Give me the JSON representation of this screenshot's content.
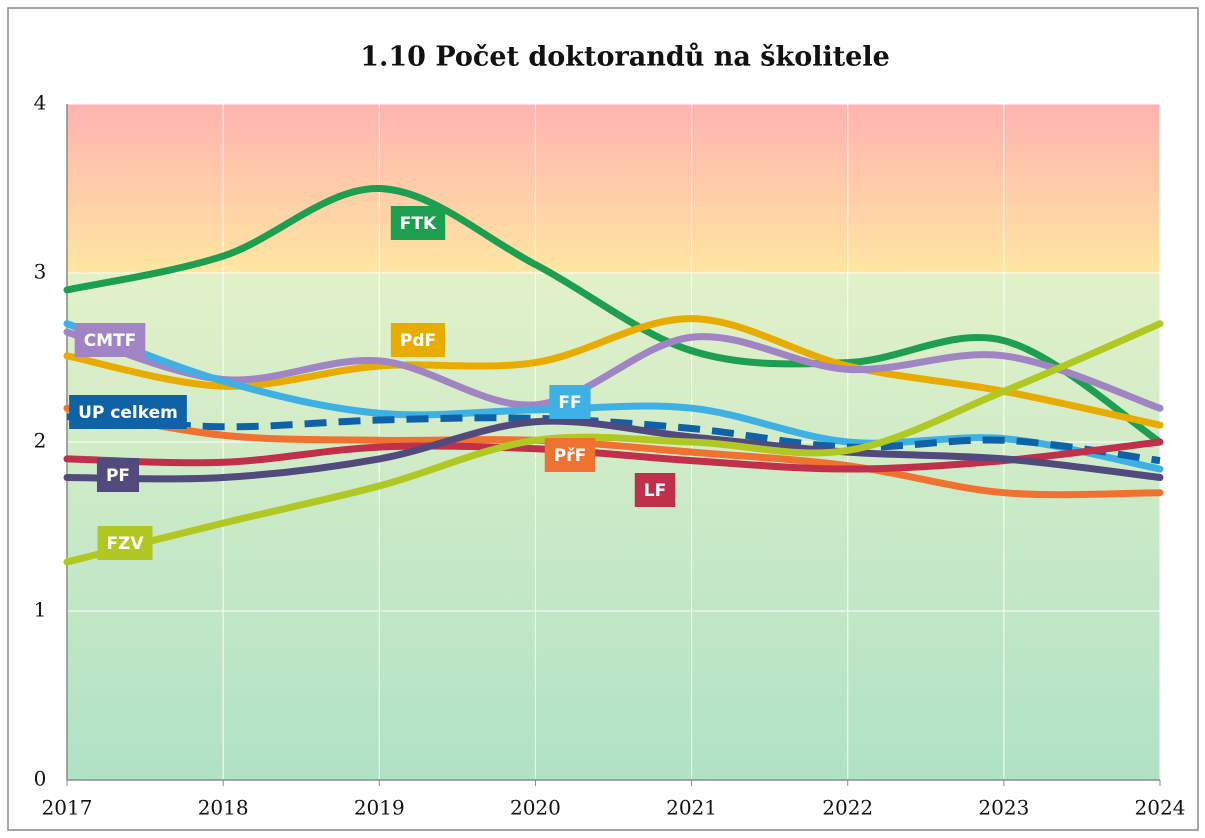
{
  "chart_data": {
    "type": "line",
    "title": "1.10 Počet doktorandů na školitele",
    "x": [
      2017,
      2018,
      2019,
      2020,
      2021,
      2022,
      2023,
      2024
    ],
    "xlim": [
      2017,
      2024
    ],
    "xticks": [
      2017,
      2018,
      2019,
      2020,
      2021,
      2022,
      2023,
      2024
    ],
    "ylim": [
      0,
      4
    ],
    "yticks": [
      0,
      1,
      2,
      3,
      4
    ],
    "grid": true,
    "series": [
      {
        "name": "FTK",
        "color": "#1e9e50",
        "values": [
          2.9,
          3.1,
          3.5,
          3.05,
          2.54,
          2.47,
          2.6,
          2.0
        ]
      },
      {
        "name": "PdF",
        "color": "#e8ac00",
        "values": [
          2.51,
          2.33,
          2.45,
          2.47,
          2.73,
          2.45,
          2.3,
          2.1
        ]
      },
      {
        "name": "CMTF",
        "color": "#a084c4",
        "values": [
          2.65,
          2.37,
          2.48,
          2.22,
          2.62,
          2.43,
          2.51,
          2.2
        ]
      },
      {
        "name": "FF",
        "color": "#3fb0e4",
        "values": [
          2.7,
          2.36,
          2.17,
          2.19,
          2.2,
          2.0,
          2.02,
          1.84
        ]
      },
      {
        "name": "UP celkem",
        "color": "#0f62a6",
        "dashed": true,
        "values": [
          2.15,
          2.09,
          2.13,
          2.14,
          2.08,
          1.97,
          2.01,
          1.89
        ]
      },
      {
        "name": "PřF",
        "color": "#f07230",
        "values": [
          2.2,
          2.04,
          2.01,
          2.01,
          1.94,
          1.86,
          1.7,
          1.7
        ]
      },
      {
        "name": "LF",
        "color": "#c0304a",
        "values": [
          1.9,
          1.88,
          1.97,
          1.96,
          1.89,
          1.84,
          1.89,
          2.0
        ]
      },
      {
        "name": "PF",
        "color": "#524a7c",
        "values": [
          1.79,
          1.79,
          1.9,
          2.12,
          2.03,
          1.94,
          1.9,
          1.79
        ]
      },
      {
        "name": "FZV",
        "color": "#b2c822",
        "values": [
          1.29,
          1.52,
          1.74,
          2.01,
          2.0,
          1.95,
          2.3,
          2.7
        ]
      }
    ]
  }
}
